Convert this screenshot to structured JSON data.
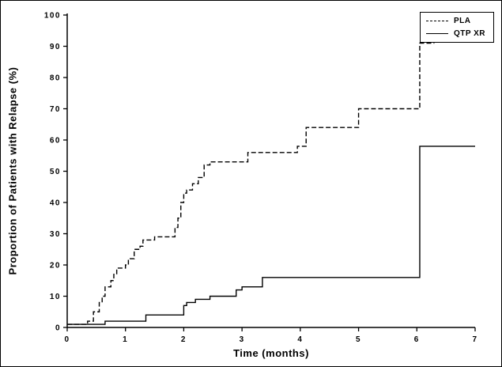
{
  "figure": {
    "type": "kaplan-meier-step-chart"
  },
  "chart_data": {
    "type": "line",
    "subtype": "step",
    "title": "",
    "xlabel": "Time (months)",
    "ylabel": "Proportion of Patients with Relapse (%)",
    "xlim": [
      0,
      7
    ],
    "ylim": [
      0,
      100
    ],
    "xticks": [
      0,
      1,
      2,
      3,
      4,
      5,
      6,
      7
    ],
    "yticks": [
      0,
      10,
      20,
      30,
      40,
      50,
      60,
      70,
      80,
      90,
      100
    ],
    "grid": false,
    "legend_position": "top-right",
    "legend": [
      "PLA",
      "QTP XR"
    ],
    "series": [
      {
        "name": "PLA",
        "style": "dashed",
        "color": "#000000",
        "end_x": 6.3,
        "points": [
          [
            0,
            1
          ],
          [
            0.35,
            2
          ],
          [
            0.45,
            5
          ],
          [
            0.55,
            8
          ],
          [
            0.6,
            10
          ],
          [
            0.65,
            13
          ],
          [
            0.75,
            15
          ],
          [
            0.8,
            17
          ],
          [
            0.85,
            19
          ],
          [
            1.0,
            20
          ],
          [
            1.05,
            22
          ],
          [
            1.15,
            25
          ],
          [
            1.25,
            26
          ],
          [
            1.3,
            28
          ],
          [
            1.5,
            29
          ],
          [
            1.85,
            32
          ],
          [
            1.9,
            35
          ],
          [
            1.95,
            40
          ],
          [
            2.0,
            43
          ],
          [
            2.05,
            44
          ],
          [
            2.15,
            46
          ],
          [
            2.25,
            48
          ],
          [
            2.35,
            52
          ],
          [
            2.45,
            53
          ],
          [
            3.1,
            56
          ],
          [
            3.95,
            58
          ],
          [
            4.1,
            64
          ],
          [
            5.0,
            70
          ],
          [
            6.05,
            91
          ]
        ]
      },
      {
        "name": "QTP XR",
        "style": "solid",
        "color": "#000000",
        "end_x": 7,
        "points": [
          [
            0,
            1
          ],
          [
            0.65,
            2
          ],
          [
            1.35,
            4
          ],
          [
            2.0,
            7
          ],
          [
            2.05,
            8
          ],
          [
            2.2,
            9
          ],
          [
            2.45,
            10
          ],
          [
            2.9,
            12
          ],
          [
            3.0,
            13
          ],
          [
            3.35,
            16
          ],
          [
            6.05,
            58
          ]
        ]
      }
    ]
  }
}
